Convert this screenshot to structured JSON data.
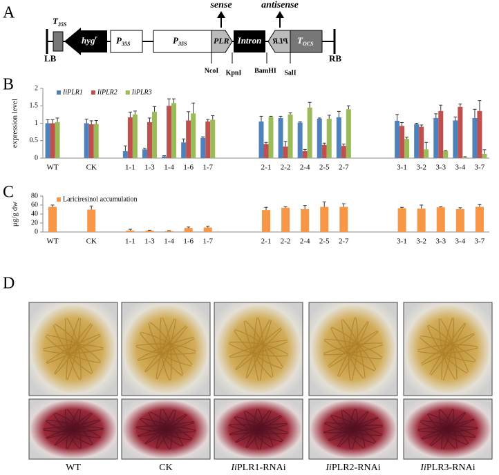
{
  "construct": {
    "panel_label": "A",
    "t35s": {
      "main": "T",
      "sub": "35S"
    },
    "lb": "LB",
    "hyg": {
      "main": "hyg",
      "sup": "r"
    },
    "p35s_1": {
      "main": "P",
      "sub": "35S"
    },
    "p35s_2": {
      "main": "P",
      "sub": "35S"
    },
    "plr_sense": "PLR",
    "intron": "Intron",
    "plr_antisense": "PLR",
    "tocs": {
      "main": "T",
      "sub": "OCS"
    },
    "rb": "RB",
    "sense": "sense",
    "antisense": "antisense",
    "sites": [
      "NcoI",
      "KpnI",
      "BamHI",
      "SalI"
    ]
  },
  "chart_data": [
    {
      "type": "bar",
      "panel_label": "B",
      "ylabel": "expression level",
      "categories": [
        "WT",
        null,
        "CK",
        null,
        "1-1",
        "1-3",
        "1-4",
        "1-6",
        "1-7",
        null,
        null,
        "2-1",
        "2-2",
        "2-4",
        "2-5",
        "2-7",
        null,
        null,
        "3-1",
        "3-2",
        "3-3",
        "3-4",
        "3-7"
      ],
      "series": [
        {
          "name": "IiPLR1",
          "color": "#4f81bd",
          "values": [
            1.0,
            null,
            1.0,
            null,
            0.2,
            0.25,
            0.05,
            0.45,
            0.58,
            null,
            null,
            1.05,
            1.15,
            1.02,
            1.13,
            1.17,
            null,
            null,
            1.07,
            0.97,
            1.15,
            1.08,
            1.15
          ],
          "errors": [
            0.1,
            null,
            0.12,
            null,
            0.15,
            0.03,
            0.02,
            0.1,
            0.03,
            null,
            null,
            0.15,
            0.05,
            0.02,
            0.02,
            0.17,
            null,
            null,
            0.18,
            0.03,
            0.12,
            0.1,
            0.25
          ]
        },
        {
          "name": "IiPLR2",
          "color": "#c0504d",
          "values": [
            1.0,
            null,
            0.97,
            null,
            1.17,
            1.03,
            1.5,
            1.08,
            1.05,
            null,
            null,
            0.4,
            0.33,
            0.2,
            0.38,
            0.35,
            null,
            null,
            0.92,
            0.9,
            1.35,
            1.47,
            1.35
          ],
          "errors": [
            0.1,
            null,
            0.1,
            null,
            0.15,
            0.12,
            0.2,
            0.25,
            0.06,
            null,
            null,
            0.05,
            0.15,
            0.05,
            0.05,
            0.05,
            null,
            null,
            0.1,
            0.05,
            0.17,
            0.08,
            0.3
          ]
        },
        {
          "name": "IiPLR3",
          "color": "#9bbb59",
          "values": [
            1.03,
            null,
            0.98,
            null,
            1.25,
            1.33,
            1.58,
            1.28,
            1.1,
            null,
            null,
            1.18,
            1.25,
            1.45,
            1.13,
            1.4,
            null,
            null,
            0.55,
            0.25,
            0.2,
            0.02,
            0.12
          ],
          "errors": [
            0.12,
            null,
            0.1,
            null,
            0.1,
            0.15,
            0.12,
            0.3,
            0.12,
            null,
            null,
            0.02,
            0.05,
            0.15,
            0.1,
            0.1,
            null,
            null,
            0.05,
            0.2,
            0.02,
            0.02,
            0.12
          ]
        }
      ],
      "ylim": [
        0,
        2
      ],
      "yticks": [
        0,
        0.5,
        1,
        1.5,
        2
      ],
      "legend": "upper left"
    },
    {
      "type": "bar",
      "panel_label": "C",
      "ylabel": "μg/g dw",
      "categories": [
        "WT",
        null,
        "CK",
        null,
        "1-1",
        "1-3",
        "1-4",
        "1-6",
        "1-7",
        null,
        null,
        "2-1",
        "2-2",
        "2-4",
        "2-5",
        "2-7",
        null,
        null,
        "3-1",
        "3-2",
        "3-3",
        "3-4",
        "3-7"
      ],
      "series": [
        {
          "name": "Lariciresinol accumulation",
          "color": "#f79646",
          "values": [
            56,
            null,
            50,
            null,
            3,
            3,
            2,
            9,
            10,
            null,
            null,
            49,
            54,
            51,
            56,
            56,
            null,
            null,
            53,
            52,
            55,
            51,
            56
          ],
          "errors": [
            4,
            null,
            8,
            null,
            3,
            1,
            1,
            2,
            3,
            null,
            null,
            6,
            2,
            8,
            11,
            7,
            null,
            null,
            2,
            8,
            1,
            3,
            5
          ]
        }
      ],
      "ylim": [
        0,
        80
      ],
      "yticks": [
        0,
        20,
        40,
        60,
        80
      ],
      "legend": "upper left"
    }
  ],
  "photos": {
    "panel_label": "D",
    "labels": [
      {
        "italic": "",
        "rest": "WT"
      },
      {
        "italic": "",
        "rest": "CK"
      },
      {
        "italic": "Ii",
        "rest": "PLR1-RNAi"
      },
      {
        "italic": "Ii",
        "rest": "PLR2-RNAi"
      },
      {
        "italic": "Ii",
        "rest": "PLR3-RNAi"
      }
    ]
  }
}
